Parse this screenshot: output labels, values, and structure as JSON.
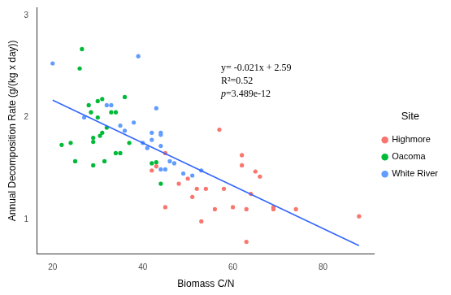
{
  "chart_data": {
    "type": "scatter",
    "x_label": "Biomass C/N",
    "y_label": "Annual Decomposition Rate (g/(kg x day))",
    "legend_title": "Site",
    "legend": "right",
    "grid": false,
    "marker": "circle",
    "xlim": [
      16.6,
      91.4
    ],
    "xticks": [
      20,
      40,
      60,
      80
    ],
    "ylim": [
      0.66,
      3.08
    ],
    "yticks": [
      1,
      2,
      3
    ],
    "annotations": [
      "y= -0.021x + 2.59",
      "R²=0.52",
      "p=3.489e-12"
    ],
    "fit_line": {
      "color": "#3366FF",
      "line_style": "solid",
      "x": [
        20,
        88
      ],
      "values": [
        2.17,
        0.742
      ]
    },
    "series": [
      {
        "name": "Highmore",
        "color": "#F8766D",
        "x": [
          42,
          43,
          45,
          45,
          48,
          50,
          51,
          52,
          53,
          54,
          56,
          57,
          58,
          60,
          62,
          62,
          63,
          63,
          64,
          65,
          66,
          69,
          69,
          74,
          88
        ],
        "values": [
          1.48,
          1.52,
          1.12,
          1.65,
          1.35,
          1.4,
          1.22,
          1.3,
          0.98,
          1.3,
          1.1,
          1.88,
          1.3,
          1.12,
          1.63,
          1.53,
          1.1,
          0.78,
          1.25,
          1.47,
          1.42,
          1.1,
          1.12,
          1.1,
          1.03
        ]
      },
      {
        "name": "Oacoma",
        "color": "#00BA38",
        "x": [
          26,
          26.5,
          22,
          24,
          25,
          28,
          28.5,
          29,
          29,
          29,
          30,
          30,
          30.5,
          31,
          31,
          31.5,
          32,
          33,
          34,
          34,
          35,
          36,
          37,
          42,
          43,
          44
        ],
        "values": [
          2.48,
          2.67,
          1.73,
          1.75,
          1.57,
          2.12,
          2.05,
          1.8,
          1.76,
          1.53,
          2.16,
          2.0,
          1.82,
          1.85,
          2.18,
          1.57,
          1.9,
          2.05,
          2.05,
          1.65,
          1.65,
          2.2,
          1.75,
          1.55,
          1.56,
          1.35
        ]
      },
      {
        "name": "White River",
        "color": "#619CFF",
        "x": [
          20,
          27,
          32,
          33,
          35,
          36,
          38,
          39,
          40,
          41,
          42,
          42,
          43,
          44,
          44,
          44,
          44,
          45,
          46,
          47,
          49,
          51,
          53
        ],
        "values": [
          2.53,
          2.0,
          2.12,
          2.12,
          1.92,
          1.87,
          1.95,
          2.6,
          1.75,
          1.7,
          1.85,
          1.78,
          2.09,
          1.85,
          1.83,
          1.72,
          1.49,
          1.49,
          1.57,
          1.55,
          1.45,
          1.43,
          1.48
        ]
      }
    ]
  }
}
